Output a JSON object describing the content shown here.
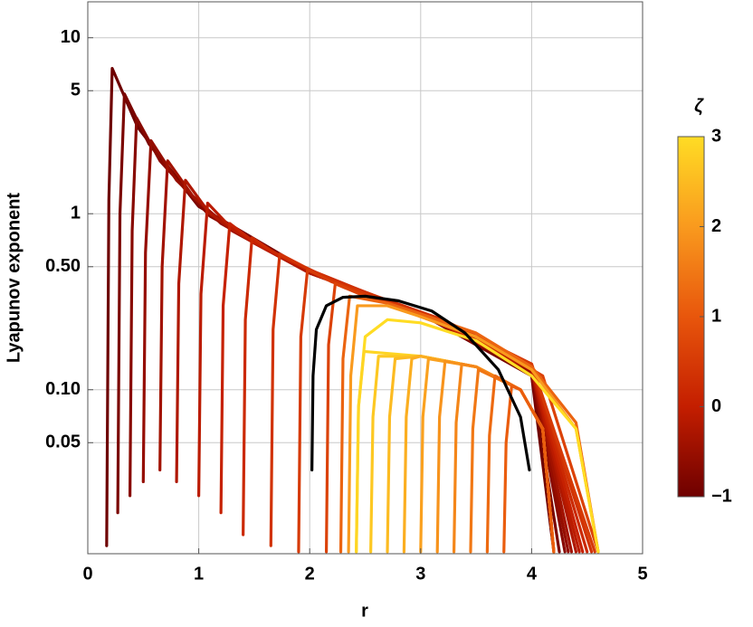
{
  "chart_data": {
    "type": "line",
    "x_label": "r",
    "y_label": "Lyapunov exponent",
    "xlim": [
      0,
      5
    ],
    "xticks": [
      0,
      1,
      2,
      3,
      4,
      5
    ],
    "ylim": [
      0.0117,
      16
    ],
    "ylog": true,
    "yticks": [
      10,
      5,
      1,
      {
        "value": 0.5,
        "label": "0.50"
      },
      {
        "value": 0.1,
        "label": "0.10"
      },
      0.05
    ],
    "grid": true,
    "colorbar": {
      "title": "ζ",
      "lim": [
        -1,
        3
      ],
      "ticks": [
        {
          "value": -1,
          "label": "−1"
        },
        0,
        1,
        2,
        3
      ],
      "colormap": [
        "#6e0000",
        "#c41e00",
        "#e8560c",
        "#f99a1e",
        "#ffdc24"
      ]
    },
    "series": [
      {
        "zeta": -1.0,
        "x": [
          0.17,
          0.19,
          0.22,
          0.45,
          1,
          2,
          3,
          4,
          4.2
        ],
        "values": [
          0.013,
          1.2,
          6.7,
          3.1,
          1.1,
          0.47,
          0.27,
          0.12,
          0.012
        ]
      },
      {
        "zeta": -0.85,
        "x": [
          0.27,
          0.29,
          0.33,
          0.55,
          1,
          2,
          3,
          4,
          4.25
        ],
        "values": [
          0.02,
          1.0,
          4.8,
          2.5,
          1.1,
          0.47,
          0.27,
          0.12,
          0.012
        ]
      },
      {
        "zeta": -0.7,
        "x": [
          0.38,
          0.4,
          0.44,
          0.65,
          1.1,
          2,
          3,
          4,
          4.3
        ],
        "values": [
          0.025,
          0.8,
          3.5,
          2.0,
          0.97,
          0.47,
          0.27,
          0.125,
          0.012
        ]
      },
      {
        "zeta": -0.55,
        "x": [
          0.5,
          0.52,
          0.57,
          0.8,
          1.2,
          2,
          3,
          4,
          4.33
        ],
        "values": [
          0.03,
          0.6,
          2.6,
          1.55,
          0.88,
          0.46,
          0.27,
          0.125,
          0.012
        ]
      },
      {
        "zeta": -0.4,
        "x": [
          0.65,
          0.67,
          0.72,
          0.95,
          1.3,
          2,
          3,
          4,
          4.36
        ],
        "values": [
          0.035,
          0.5,
          2.0,
          1.25,
          0.8,
          0.46,
          0.27,
          0.13,
          0.012
        ]
      },
      {
        "zeta": -0.25,
        "x": [
          0.8,
          0.82,
          0.88,
          1.1,
          1.5,
          2,
          3,
          4,
          4.4
        ],
        "values": [
          0.03,
          0.4,
          1.55,
          1.0,
          0.68,
          0.46,
          0.27,
          0.13,
          0.012
        ]
      },
      {
        "zeta": -0.1,
        "x": [
          1.0,
          1.02,
          1.08,
          1.3,
          1.6,
          2.1,
          3,
          4,
          4.43
        ],
        "values": [
          0.025,
          0.35,
          1.15,
          0.82,
          0.63,
          0.44,
          0.27,
          0.13,
          0.012
        ]
      },
      {
        "zeta": 0.05,
        "x": [
          1.2,
          1.22,
          1.28,
          1.5,
          1.8,
          2.2,
          3,
          4,
          4.46
        ],
        "values": [
          0.02,
          0.3,
          0.88,
          0.69,
          0.55,
          0.42,
          0.27,
          0.135,
          0.012
        ]
      },
      {
        "zeta": 0.2,
        "x": [
          1.4,
          1.42,
          1.48,
          1.7,
          2.0,
          2.4,
          3,
          4,
          4.5
        ],
        "values": [
          0.015,
          0.25,
          0.73,
          0.59,
          0.48,
          0.38,
          0.27,
          0.135,
          0.012
        ]
      },
      {
        "zeta": 0.35,
        "x": [
          1.65,
          1.67,
          1.73,
          1.95,
          2.2,
          2.6,
          3.2,
          4,
          4.54
        ],
        "values": [
          0.013,
          0.22,
          0.59,
          0.5,
          0.42,
          0.34,
          0.25,
          0.14,
          0.012
        ]
      },
      {
        "zeta": 0.5,
        "x": [
          1.9,
          1.92,
          1.98,
          2.2,
          2.5,
          2.8,
          3.3,
          4,
          4.57
        ],
        "values": [
          0.012,
          0.2,
          0.48,
          0.41,
          0.35,
          0.3,
          0.23,
          0.14,
          0.012
        ]
      },
      {
        "zeta": 0.65,
        "x": [
          2.15,
          2.17,
          2.23,
          2.45,
          2.7,
          3.0,
          3.5,
          4.1,
          4.6
        ],
        "values": [
          0.012,
          0.18,
          0.4,
          0.35,
          0.31,
          0.26,
          0.2,
          0.12,
          0.012
        ]
      },
      {
        "zeta": 1.2,
        "x": [
          2.28,
          2.3,
          2.36,
          2.7,
          3,
          3.5,
          4,
          4.4,
          4.6
        ],
        "values": [
          0.012,
          0.15,
          0.34,
          0.31,
          0.27,
          0.21,
          0.135,
          0.065,
          0.012
        ]
      },
      {
        "zeta": 2.0,
        "x": [
          2.35,
          2.37,
          2.43,
          2.7,
          3,
          3.5,
          4,
          4.4,
          4.6
        ],
        "values": [
          0.012,
          0.12,
          0.3,
          0.3,
          0.26,
          0.2,
          0.13,
          0.06,
          0.012
        ]
      },
      {
        "zeta": 3.0,
        "x": [
          2.42,
          2.44,
          2.5,
          2.7,
          3,
          3.5,
          4,
          4.4,
          4.6
        ],
        "values": [
          0.012,
          0.08,
          0.2,
          0.25,
          0.24,
          0.19,
          0.12,
          0.06,
          0.012
        ]
      },
      {
        "zeta": 2.9,
        "x": [
          2.42,
          2.44,
          2.49,
          3.0,
          3.5,
          3.9,
          4.1,
          4.2
        ],
        "values": [
          0.012,
          0.08,
          0.165,
          0.155,
          0.135,
          0.1,
          0.06,
          0.012
        ]
      },
      {
        "zeta": 2.7,
        "x": [
          2.55,
          2.57,
          2.62,
          3.0,
          3.5,
          3.9,
          4.1,
          4.2
        ],
        "values": [
          0.012,
          0.07,
          0.155,
          0.155,
          0.135,
          0.1,
          0.06,
          0.012
        ]
      },
      {
        "zeta": 2.5,
        "x": [
          2.7,
          2.72,
          2.77,
          3.0,
          3.5,
          3.9,
          4.1,
          4.2
        ],
        "values": [
          0.012,
          0.07,
          0.15,
          0.155,
          0.135,
          0.1,
          0.06,
          0.012
        ]
      },
      {
        "zeta": 2.3,
        "x": [
          2.85,
          2.87,
          2.92,
          3.0,
          3.5,
          3.9,
          4.1,
          4.2
        ],
        "values": [
          0.012,
          0.07,
          0.15,
          0.155,
          0.135,
          0.1,
          0.06,
          0.012
        ]
      },
      {
        "zeta": 2.1,
        "x": [
          3.0,
          3.02,
          3.07,
          3.5,
          3.9,
          4.1,
          4.2
        ],
        "values": [
          0.012,
          0.07,
          0.15,
          0.135,
          0.1,
          0.06,
          0.012
        ]
      },
      {
        "zeta": 1.9,
        "x": [
          3.15,
          3.17,
          3.22,
          3.5,
          3.9,
          4.1,
          4.2
        ],
        "values": [
          0.012,
          0.07,
          0.145,
          0.135,
          0.1,
          0.06,
          0.012
        ]
      },
      {
        "zeta": 1.7,
        "x": [
          3.3,
          3.32,
          3.37,
          3.5,
          3.9,
          4.1,
          4.2
        ],
        "values": [
          0.012,
          0.065,
          0.14,
          0.135,
          0.1,
          0.06,
          0.012
        ]
      },
      {
        "zeta": 1.5,
        "x": [
          3.45,
          3.47,
          3.52,
          3.9,
          4.1,
          4.2
        ],
        "values": [
          0.012,
          0.06,
          0.13,
          0.1,
          0.06,
          0.012
        ]
      },
      {
        "zeta": 1.3,
        "x": [
          3.6,
          3.62,
          3.67,
          3.9,
          4.1,
          4.2
        ],
        "values": [
          0.012,
          0.055,
          0.12,
          0.1,
          0.06,
          0.012
        ]
      },
      {
        "zeta": 1.1,
        "x": [
          3.75,
          3.77,
          3.82,
          3.9,
          4.1,
          4.2
        ],
        "values": [
          0.012,
          0.05,
          0.105,
          0.1,
          0.06,
          0.012
        ]
      },
      {
        "color": "#000000",
        "x": [
          2.02,
          2.03,
          2.06,
          2.15,
          2.3,
          2.5,
          2.8,
          3.1,
          3.4,
          3.7,
          3.9,
          3.98
        ],
        "values": [
          0.035,
          0.12,
          0.22,
          0.3,
          0.335,
          0.34,
          0.32,
          0.28,
          0.21,
          0.13,
          0.07,
          0.035
        ]
      }
    ]
  }
}
